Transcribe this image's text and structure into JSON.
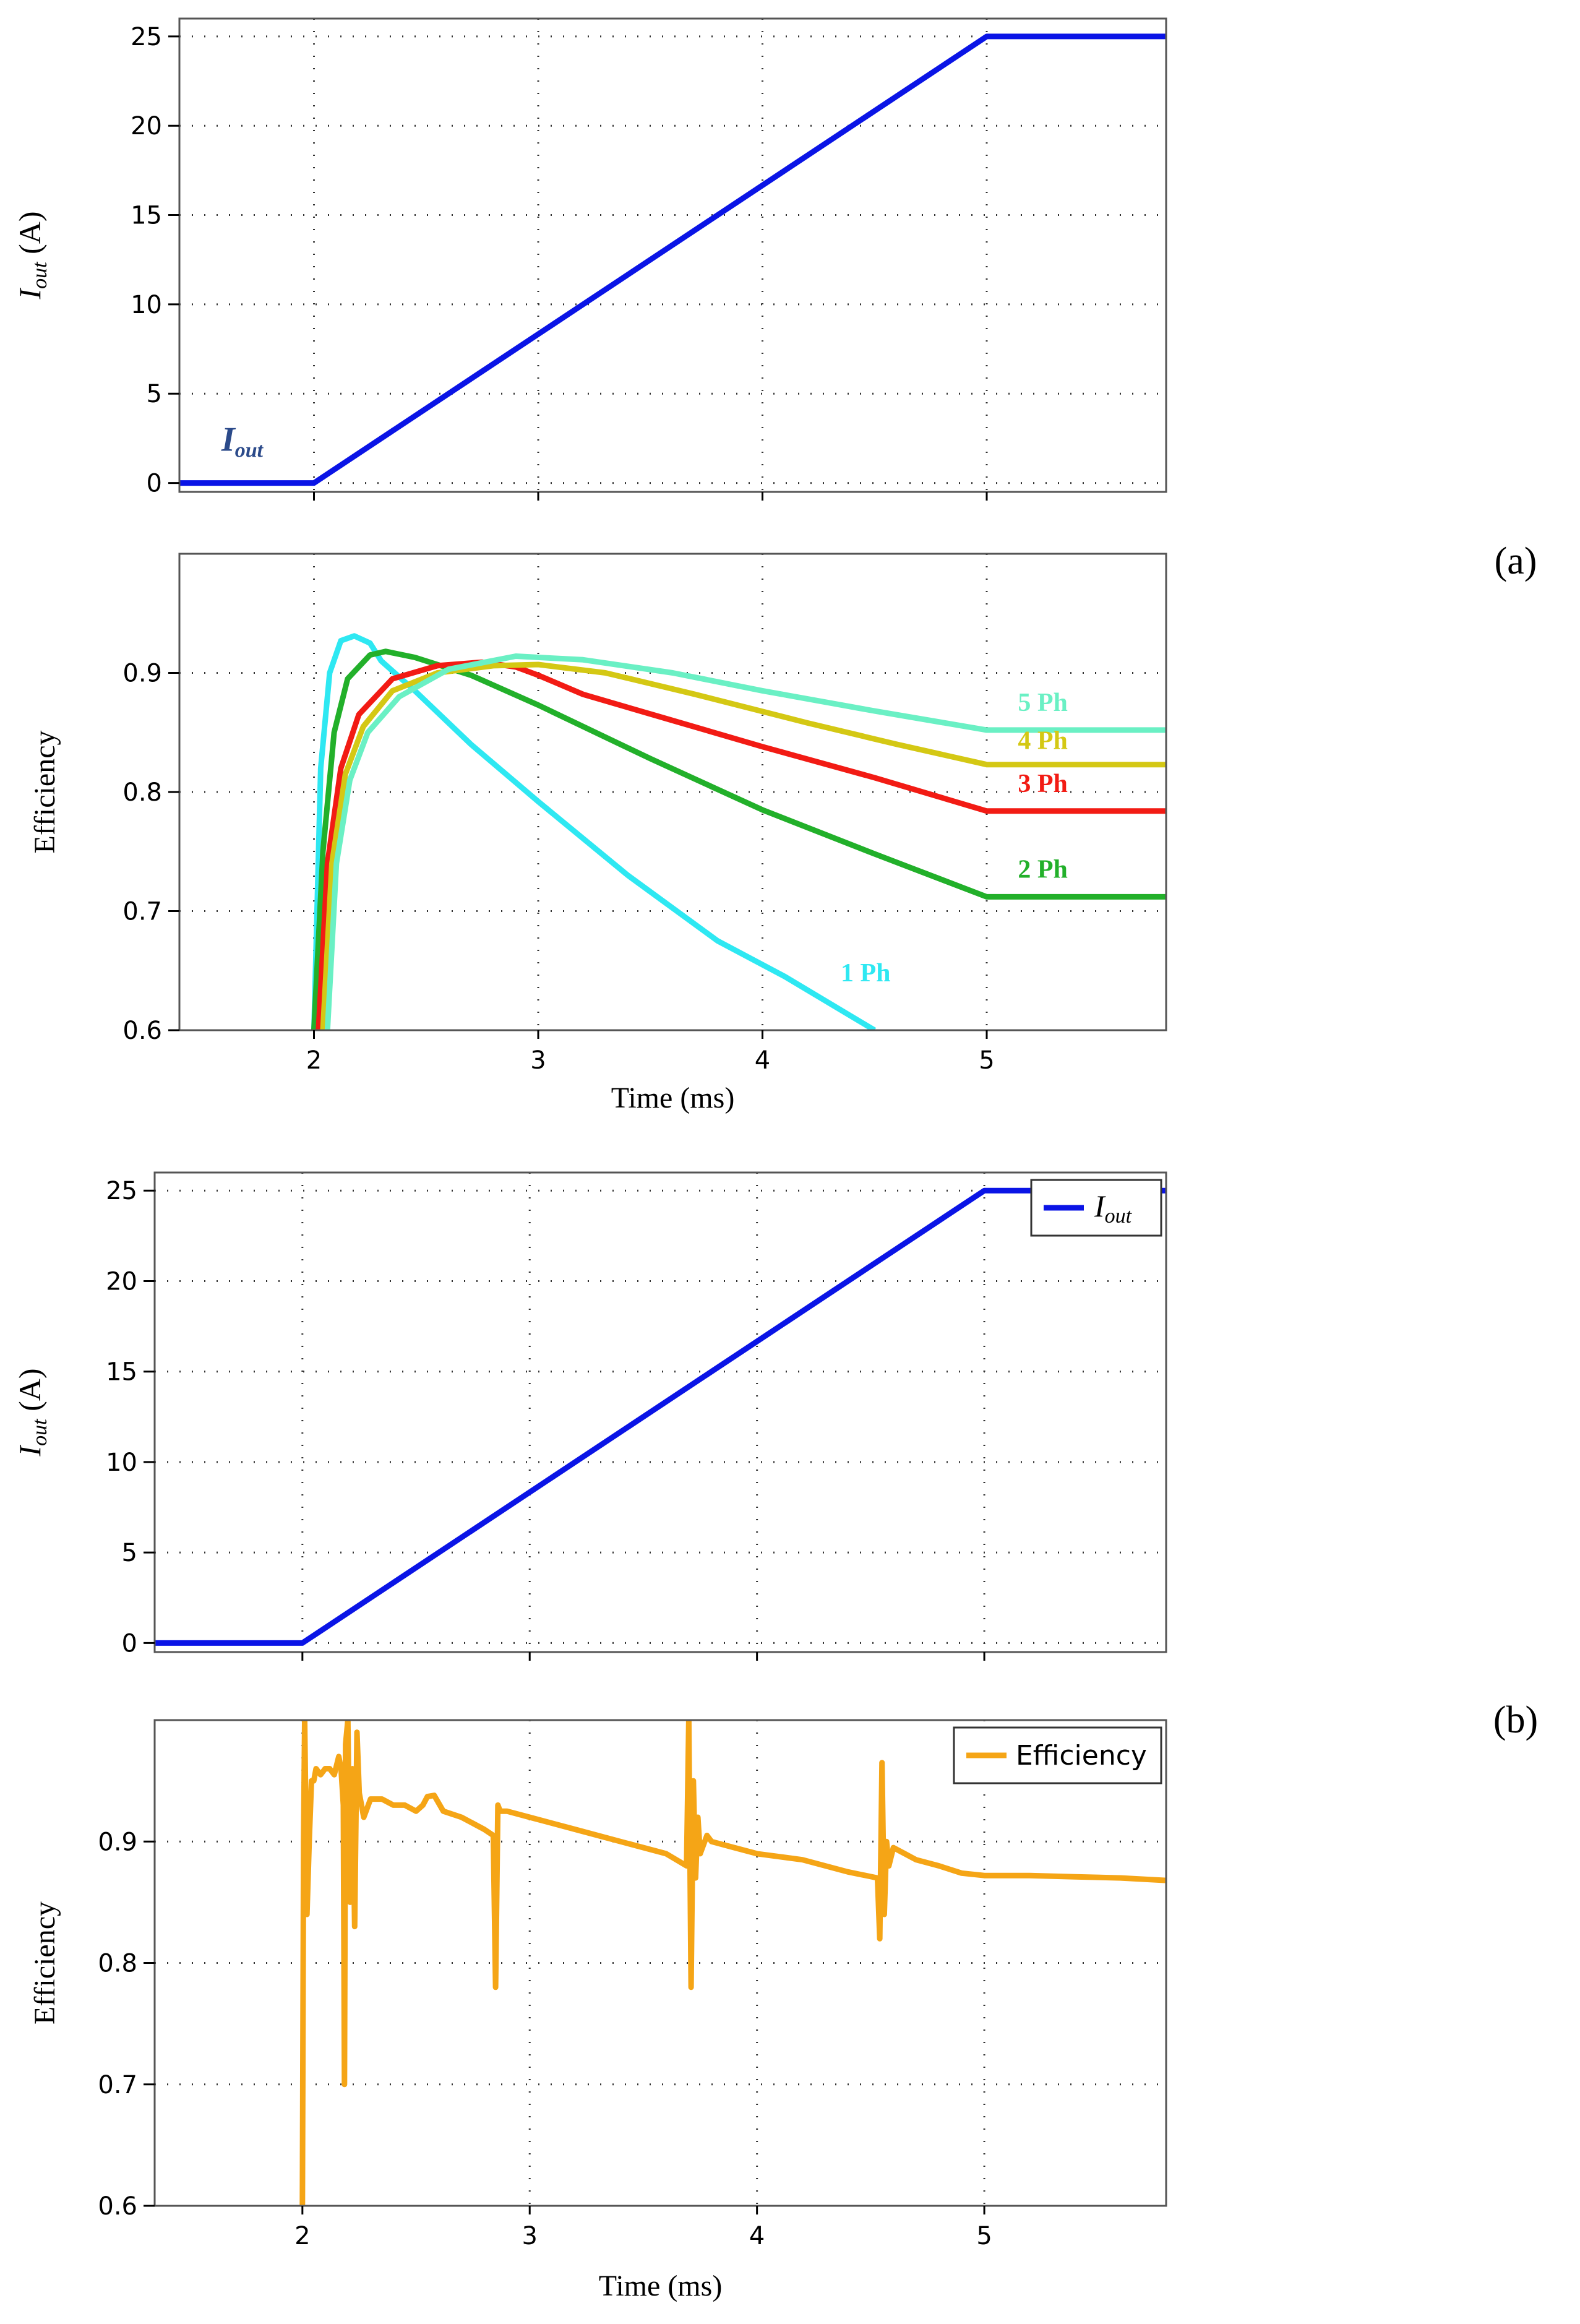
{
  "figure": {
    "panel_labels": [
      "(a)",
      "(b)"
    ]
  },
  "chart_data": [
    {
      "id": "a_top",
      "type": "line",
      "ylabel_main": "I",
      "ylabel_sub": "out",
      "ylabel_unit": " (A)",
      "xlim": [
        1.4,
        5.8
      ],
      "ylim": [
        -0.5,
        26
      ],
      "xticks": [
        2,
        3,
        4,
        5
      ],
      "yticks": [
        0,
        5,
        10,
        15,
        20,
        25
      ],
      "ytick_labels": [
        "0",
        "5",
        "10",
        "15",
        "20",
        "25"
      ],
      "show_xtick_labels": false,
      "grid": true,
      "series": [
        {
          "name": "Iout",
          "color": "#0a14e6",
          "x": [
            1.4,
            2.0,
            5.0,
            5.8
          ],
          "y": [
            0,
            0,
            25,
            25
          ]
        }
      ],
      "annotations": [
        {
          "text_main": "I",
          "text_sub": "out",
          "x": 1.68,
          "y": 1.8,
          "color": "#2b4a8a"
        }
      ]
    },
    {
      "id": "a_bottom",
      "type": "line",
      "ylabel": "Efficiency",
      "xlabel": "Time (ms)",
      "xlim": [
        1.4,
        5.8
      ],
      "ylim": [
        0.6,
        1.0
      ],
      "xticks": [
        2,
        3,
        4,
        5
      ],
      "xtick_labels": [
        "2",
        "3",
        "4",
        "5"
      ],
      "yticks": [
        0.6,
        0.7,
        0.8,
        0.9
      ],
      "ytick_labels": [
        "0.6",
        "0.7",
        "0.8",
        "0.9"
      ],
      "show_xtick_labels": true,
      "grid": true,
      "series": [
        {
          "name": "1 Ph",
          "color": "#2ee8f2",
          "x": [
            2.0,
            2.03,
            2.07,
            2.12,
            2.18,
            2.25,
            2.3,
            2.45,
            2.7,
            3.0,
            3.4,
            3.8,
            4.1,
            4.5
          ],
          "y": [
            0.6,
            0.82,
            0.9,
            0.927,
            0.931,
            0.925,
            0.91,
            0.885,
            0.84,
            0.792,
            0.73,
            0.675,
            0.645,
            0.6
          ]
        },
        {
          "name": "2 Ph",
          "color": "#22b02a",
          "x": [
            2.0,
            2.04,
            2.09,
            2.15,
            2.25,
            2.32,
            2.45,
            2.7,
            3.0,
            3.5,
            4.0,
            4.5,
            5.0,
            5.8
          ],
          "y": [
            0.6,
            0.75,
            0.85,
            0.895,
            0.915,
            0.918,
            0.913,
            0.898,
            0.873,
            0.828,
            0.785,
            0.748,
            0.712,
            0.712
          ]
        },
        {
          "name": "3 Ph",
          "color": "#f21b14",
          "x": [
            2.02,
            2.06,
            2.12,
            2.2,
            2.35,
            2.55,
            2.75,
            2.9,
            3.0,
            3.2,
            3.6,
            4.0,
            4.5,
            5.0,
            5.8
          ],
          "y": [
            0.6,
            0.74,
            0.82,
            0.865,
            0.895,
            0.906,
            0.909,
            0.905,
            0.898,
            0.882,
            0.86,
            0.838,
            0.812,
            0.784,
            0.784
          ]
        },
        {
          "name": "4 Ph",
          "color": "#d4c814",
          "x": [
            2.04,
            2.08,
            2.14,
            2.22,
            2.35,
            2.55,
            2.8,
            3.0,
            3.3,
            3.7,
            4.2,
            4.6,
            5.0,
            5.8
          ],
          "y": [
            0.6,
            0.74,
            0.815,
            0.855,
            0.885,
            0.9,
            0.906,
            0.907,
            0.9,
            0.882,
            0.858,
            0.84,
            0.823,
            0.823
          ]
        },
        {
          "name": "5 Ph",
          "color": "#6af0c4",
          "x": [
            2.06,
            2.1,
            2.16,
            2.24,
            2.38,
            2.6,
            2.9,
            3.2,
            3.6,
            4.0,
            4.5,
            5.0,
            5.8
          ],
          "y": [
            0.6,
            0.74,
            0.81,
            0.85,
            0.88,
            0.903,
            0.914,
            0.911,
            0.9,
            0.885,
            0.868,
            0.852,
            0.852
          ]
        }
      ],
      "annotations": [
        {
          "text": "5 Ph",
          "x": 5.25,
          "y": 0.868,
          "color": "#6af0c4"
        },
        {
          "text": "4 Ph",
          "x": 5.25,
          "y": 0.836,
          "color": "#d4c814"
        },
        {
          "text": "3 Ph",
          "x": 5.25,
          "y": 0.8,
          "color": "#f21b14"
        },
        {
          "text": "2 Ph",
          "x": 5.25,
          "y": 0.728,
          "color": "#22b02a"
        },
        {
          "text": "1 Ph",
          "x": 4.46,
          "y": 0.641,
          "color": "#2ee8f2"
        }
      ]
    },
    {
      "id": "b_top",
      "type": "line",
      "ylabel_main": "I",
      "ylabel_sub": "out",
      "ylabel_unit": " (A)",
      "xlim": [
        1.35,
        5.8
      ],
      "ylim": [
        -0.5,
        26
      ],
      "xticks": [
        2,
        3,
        4,
        5
      ],
      "yticks": [
        0,
        5,
        10,
        15,
        20,
        25
      ],
      "ytick_labels": [
        "0",
        "5",
        "10",
        "15",
        "20",
        "25"
      ],
      "show_xtick_labels": false,
      "grid": true,
      "series": [
        {
          "name": "Iout",
          "color": "#0a14e6",
          "x": [
            1.35,
            2.0,
            5.0,
            5.8
          ],
          "y": [
            0,
            0,
            25,
            25
          ]
        }
      ],
      "legend": {
        "placement": "top-right",
        "entries": [
          {
            "label_main": "I",
            "label_sub": "out",
            "color": "#0a14e6"
          }
        ]
      }
    },
    {
      "id": "b_bottom",
      "type": "line",
      "ylabel": "Efficiency",
      "xlabel": "Time (ms)",
      "xlim": [
        1.35,
        5.8
      ],
      "ylim": [
        0.6,
        1.0
      ],
      "xticks": [
        2,
        3,
        4,
        5
      ],
      "xtick_labels": [
        "2",
        "3",
        "4",
        "5"
      ],
      "yticks": [
        0.6,
        0.7,
        0.8,
        0.9
      ],
      "ytick_labels": [
        "0.6",
        "0.7",
        "0.8",
        "0.9"
      ],
      "show_xtick_labels": true,
      "grid": true,
      "series": [
        {
          "name": "Efficiency",
          "color": "#f5a516",
          "x": [
            2.0,
            2.005,
            2.01,
            2.02,
            2.03,
            2.04,
            2.05,
            2.06,
            2.08,
            2.1,
            2.12,
            2.14,
            2.16,
            2.17,
            2.18,
            2.185,
            2.19,
            2.2,
            2.21,
            2.22,
            2.23,
            2.24,
            2.25,
            2.27,
            2.3,
            2.35,
            2.4,
            2.45,
            2.5,
            2.53,
            2.55,
            2.58,
            2.62,
            2.7,
            2.8,
            2.84,
            2.85,
            2.86,
            2.87,
            2.9,
            3.0,
            3.2,
            3.4,
            3.6,
            3.69,
            3.7,
            3.71,
            3.72,
            3.73,
            3.74,
            3.75,
            3.78,
            3.8,
            3.9,
            4.0,
            4.2,
            4.4,
            4.53,
            4.54,
            4.55,
            4.56,
            4.57,
            4.58,
            4.6,
            4.65,
            4.7,
            4.8,
            4.9,
            5.0,
            5.2,
            5.4,
            5.6,
            5.8
          ],
          "y": [
            0.6,
            0.9,
            1.0,
            0.84,
            0.9,
            0.95,
            0.95,
            0.96,
            0.955,
            0.96,
            0.96,
            0.955,
            0.97,
            0.96,
            0.93,
            0.7,
            0.98,
            1.0,
            0.85,
            0.96,
            0.83,
            0.99,
            0.94,
            0.92,
            0.935,
            0.935,
            0.93,
            0.93,
            0.925,
            0.93,
            0.937,
            0.938,
            0.925,
            0.92,
            0.91,
            0.905,
            0.78,
            0.93,
            0.925,
            0.925,
            0.92,
            0.91,
            0.9,
            0.89,
            0.88,
            1.0,
            0.78,
            0.95,
            0.87,
            0.92,
            0.89,
            0.905,
            0.9,
            0.895,
            0.89,
            0.885,
            0.875,
            0.87,
            0.82,
            0.965,
            0.84,
            0.9,
            0.88,
            0.895,
            0.89,
            0.885,
            0.88,
            0.874,
            0.872,
            0.872,
            0.871,
            0.87,
            0.868
          ]
        }
      ],
      "legend": {
        "placement": "top-right",
        "entries": [
          {
            "label": "Efficiency",
            "color": "#f5a516"
          }
        ]
      }
    }
  ]
}
